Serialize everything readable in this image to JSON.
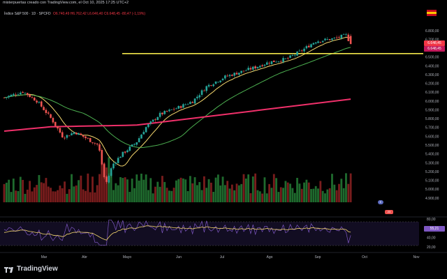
{
  "header": {
    "credit": "misterpuertas creado con TradingView.com, el Oct 10, 2025 17:25 UTC+2",
    "symbol": "Índice S&P 500 · 1D · SPCFD",
    "ohlc": "O6.740,49 H6.762,42 L6.646,40 C6.648,45 -80,47 (-1,19%)"
  },
  "colors": {
    "background": "#000000",
    "up_candle": "#26a69a",
    "down_candle": "#ef5350",
    "volume_up": "#1f6b2e",
    "volume_down": "#7a1d1d",
    "ma_fast": "#f5d76e",
    "ma_mid": "#4caf50",
    "ma_slow": "#f0306a",
    "support_line": "#f2e64a",
    "rsi_line": "#7e57c2",
    "rsi_signal": "#f5d76e"
  },
  "badges": {
    "last_price": "6.648,45",
    "last_price_2": "6.648,45",
    "rsi_value": "55,21"
  },
  "events": {
    "e1": "E",
    "e2": "23"
  },
  "chart_data": {
    "type": "candlestick",
    "symbol": "Índice S&P 500",
    "interval": "1D",
    "ylim": [
      4800,
      6850
    ],
    "price_ticks": [
      "6.800,00",
      "6.700,00",
      "6.600,00",
      "6.500,00",
      "6.400,00",
      "6.300,00",
      "6.200,00",
      "6.100,00",
      "6.000,00",
      "5.900,00",
      "5.800,00",
      "5.700,00",
      "5.600,00",
      "5.500,00",
      "5.400,00",
      "5.300,00",
      "5.200,00",
      "5.100,00",
      "5.000,00",
      "4.900,00"
    ],
    "rsi_ticks": [
      "80,00",
      "60,00",
      "40,00",
      "20,00"
    ],
    "x_labels": [
      "Mar",
      "Abr",
      "Mayo",
      "Jun",
      "Jul",
      "Ago",
      "Sep",
      "Oct",
      "Nov"
    ],
    "support_level": 6540,
    "last_close": 6648.45,
    "ohlc_keypoints": [
      {
        "m": 0.0,
        "c": 6040
      },
      {
        "m": 0.4,
        "c": 6110
      },
      {
        "m": 0.7,
        "c": 6000
      },
      {
        "m": 1.0,
        "c": 5800
      },
      {
        "m": 1.25,
        "c": 5590
      },
      {
        "m": 1.5,
        "c": 5650
      },
      {
        "m": 1.8,
        "c": 5560
      },
      {
        "m": 2.0,
        "c": 5500
      },
      {
        "m": 2.15,
        "c": 5050
      },
      {
        "m": 2.3,
        "c": 5280
      },
      {
        "m": 2.5,
        "c": 5400
      },
      {
        "m": 2.8,
        "c": 5530
      },
      {
        "m": 3.0,
        "c": 5700
      },
      {
        "m": 3.3,
        "c": 5850
      },
      {
        "m": 3.7,
        "c": 5930
      },
      {
        "m": 4.0,
        "c": 6000
      },
      {
        "m": 4.3,
        "c": 6170
      },
      {
        "m": 4.7,
        "c": 6280
      },
      {
        "m": 5.0,
        "c": 6330
      },
      {
        "m": 5.3,
        "c": 6380
      },
      {
        "m": 5.6,
        "c": 6440
      },
      {
        "m": 6.0,
        "c": 6480
      },
      {
        "m": 6.3,
        "c": 6570
      },
      {
        "m": 6.6,
        "c": 6680
      },
      {
        "m": 7.0,
        "c": 6710
      },
      {
        "m": 7.25,
        "c": 6750
      },
      {
        "m": 7.35,
        "c": 6648
      }
    ]
  }
}
